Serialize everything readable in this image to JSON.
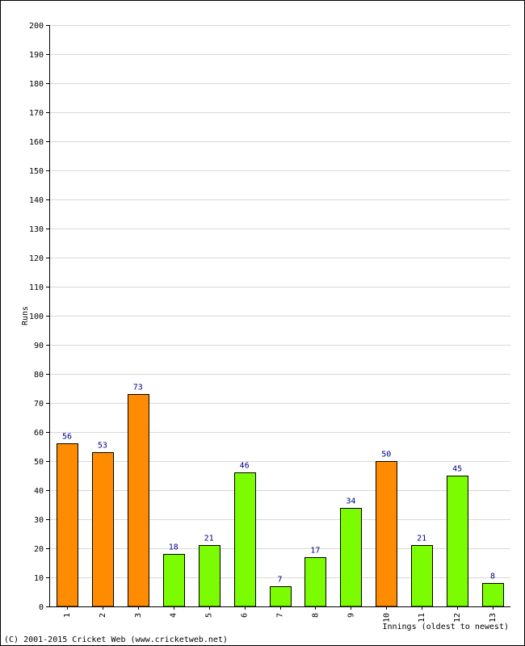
{
  "chart_data": {
    "type": "bar",
    "title": "",
    "xlabel": "Innings (oldest to newest)",
    "ylabel": "Runs",
    "ylim": [
      0,
      200
    ],
    "ytick_step": 10,
    "grid": true,
    "categories": [
      "1",
      "2",
      "3",
      "4",
      "5",
      "6",
      "7",
      "8",
      "9",
      "10",
      "11",
      "12",
      "13"
    ],
    "values": [
      56,
      53,
      73,
      18,
      21,
      46,
      7,
      17,
      34,
      50,
      21,
      45,
      8
    ],
    "bar_colors": [
      "#ff8c00",
      "#ff8c00",
      "#ff8c00",
      "#7cfc00",
      "#7cfc00",
      "#7cfc00",
      "#7cfc00",
      "#7cfc00",
      "#7cfc00",
      "#ff8c00",
      "#7cfc00",
      "#7cfc00",
      "#7cfc00"
    ],
    "colors": {
      "orange": "#ff8c00",
      "green": "#7cfc00",
      "value_label": "#000080",
      "grid": "#d8d8d8"
    }
  },
  "footer": {
    "copyright": "(C) 2001-2015 Cricket Web (www.cricketweb.net)"
  }
}
